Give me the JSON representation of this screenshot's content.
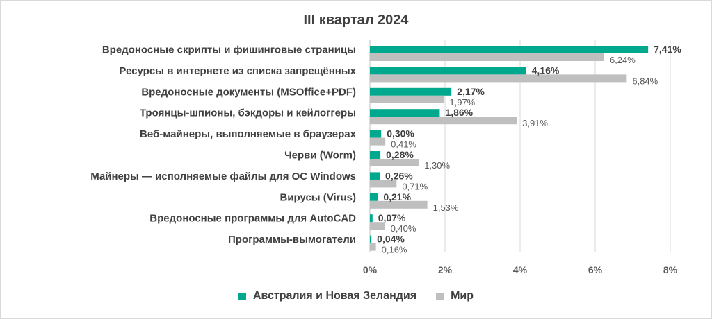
{
  "chart_data": {
    "type": "bar",
    "orientation": "horizontal",
    "title": "III квартал 2024",
    "categories": [
      "Вредоносные скрипты и фишинговые страницы",
      "Ресурсы в интернете из списка запрещённых",
      "Вредоносные документы (MSOffice+PDF)",
      "Троянцы-шпионы, бэкдоры и кейлоггеры",
      "Веб-майнеры, выполняемые в браузерах",
      "Черви (Worm)",
      "Майнеры — исполняемые файлы для ОС Windows",
      "Вирусы (Virus)",
      "Вредоносные программы для AutoCAD",
      "Программы-вымогатели"
    ],
    "series": [
      {
        "name": "Австралия и Новая Зеландия",
        "color": "#00a88e",
        "values": [
          7.41,
          4.16,
          2.17,
          1.86,
          0.3,
          0.28,
          0.26,
          0.21,
          0.07,
          0.04
        ],
        "labels": [
          "7,41%",
          "4,16%",
          "2,17%",
          "1,86%",
          "0,30%",
          "0,28%",
          "0,26%",
          "0,21%",
          "0,07%",
          "0,04%"
        ]
      },
      {
        "name": "Мир",
        "color": "#bfbfbf",
        "values": [
          6.24,
          6.84,
          1.97,
          3.91,
          0.41,
          1.3,
          0.71,
          1.53,
          0.4,
          0.16
        ],
        "labels": [
          "6,24%",
          "6,84%",
          "1,97%",
          "3,91%",
          "0,41%",
          "1,30%",
          "0,71%",
          "1,53%",
          "0,40%",
          "0,16%"
        ]
      }
    ],
    "xlim": [
      0,
      8
    ],
    "xticks": [
      "0%",
      "2%",
      "4%",
      "6%",
      "8%"
    ],
    "grid": true,
    "legend_position": "bottom"
  }
}
